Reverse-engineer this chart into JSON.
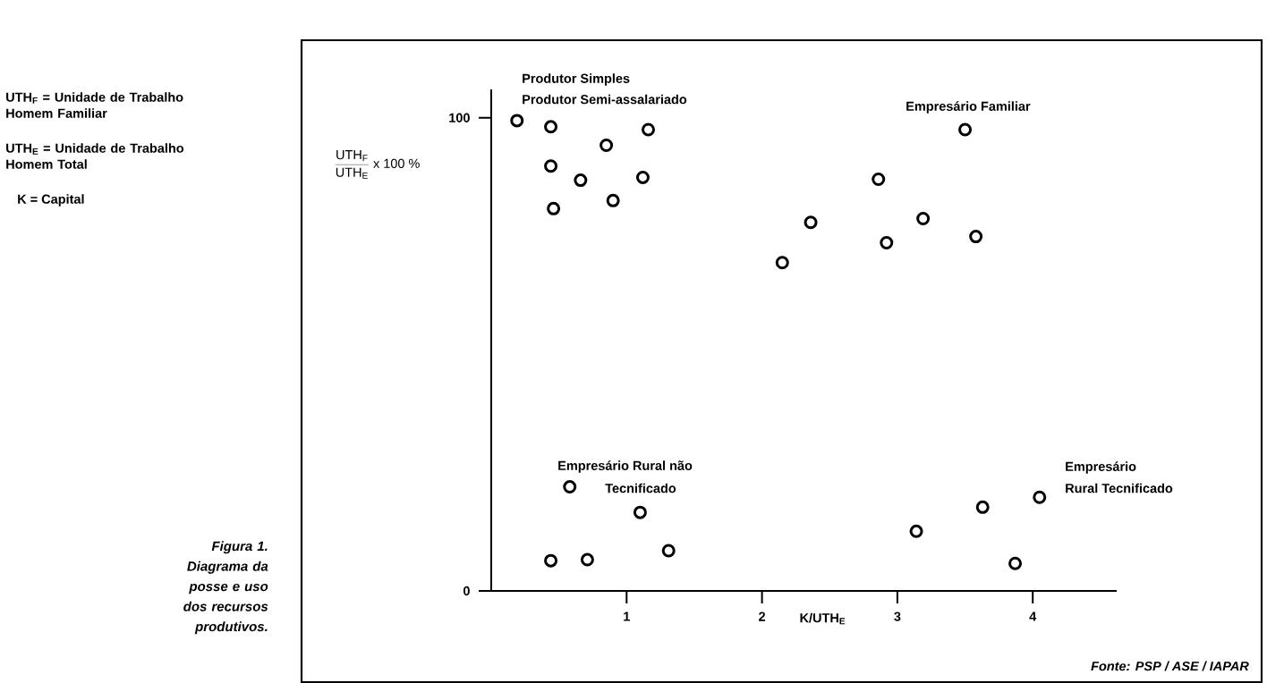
{
  "chart_data": {
    "type": "scatter",
    "xlabel": "K/UTH$_{E}$",
    "ylabel": "\\frac{\\mathrm{UTH}_{\\mathrm{F}}}{\\mathrm{UTH}_{\\mathrm{E}}}\\;\\mathrm{x}\\ \\mathrm{100}\\ \\%",
    "series": [
      {
        "color": "#000000",
        "x": [
          0.19,
          0.44,
          0.44,
          0.46,
          0.66,
          0.85,
          0.9,
          1.12,
          1.16,
          2.15,
          2.36,
          2.86,
          2.92,
          3.19,
          3.5,
          3.58,
          0.44,
          0.58,
          0.71,
          1.1,
          1.31,
          3.14,
          3.63,
          3.87,
          4.05
        ],
        "values": [
          99.4,
          98.1,
          89.8,
          80.8,
          86.8,
          94.2,
          82.5,
          87.4,
          97.5,
          69.4,
          77.9,
          87.0,
          73.6,
          78.7,
          97.5,
          74.9,
          6.4,
          22,
          6.6,
          16.6,
          8.5,
          12.6,
          17.7,
          5.8,
          19.8
        ]
      }
    ],
    "marker": "circle",
    "xlim": [
      0,
      4.62
    ],
    "ylim": [
      0,
      106
    ],
    "xticks": [
      1,
      2,
      3,
      4
    ],
    "yticks": [
      0,
      100
    ],
    "annotations": [
      "Produtor Simples",
      "Produtor Semi-assalariado",
      "Empresário Familiar",
      "Empresário Rural não",
      "Tecnificado",
      "Empresário",
      "Rural Tecnificado",
      "UTH$_{F}$ = Unidade de Trabalho Homem Familiar",
      "UTH$_{E}$ = Unidade de Trabalho Homem Total",
      "K = Capital",
      "Figura 1. Diagrama da posse e uso dos recursos produtivos.",
      "Fonte: PSP / ASE / IAPAR"
    ]
  }
}
